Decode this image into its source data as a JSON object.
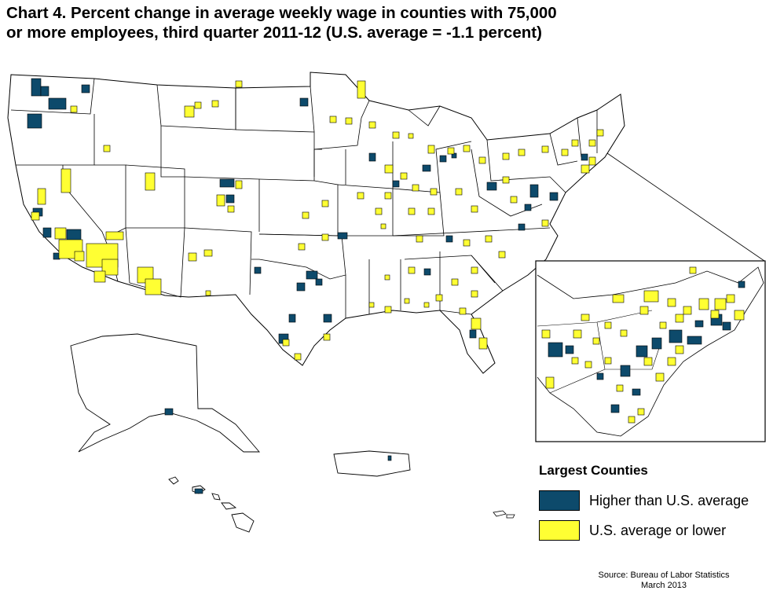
{
  "title": {
    "line1": "Chart 4.  Percent change in average weekly wage in counties with 75,000",
    "line2": "or more employees, third quarter 2011-12 (U.S. average = -1.1 percent)"
  },
  "legend": {
    "title": "Largest Counties",
    "items": [
      {
        "label": "Higher than U.S. average",
        "color": "#0d4a6b"
      },
      {
        "label": "U.S. average or lower",
        "color": "#ffff33"
      }
    ]
  },
  "source": {
    "line1": "Source: Bureau of Labor Statistics",
    "line2": "March 2013"
  },
  "colors": {
    "higher": "#0d4a6b",
    "lower": "#ffff33",
    "outline": "#000000",
    "background": "#ffffff"
  },
  "icons": {
    "inset_callout": "zoom-callout-lines"
  }
}
